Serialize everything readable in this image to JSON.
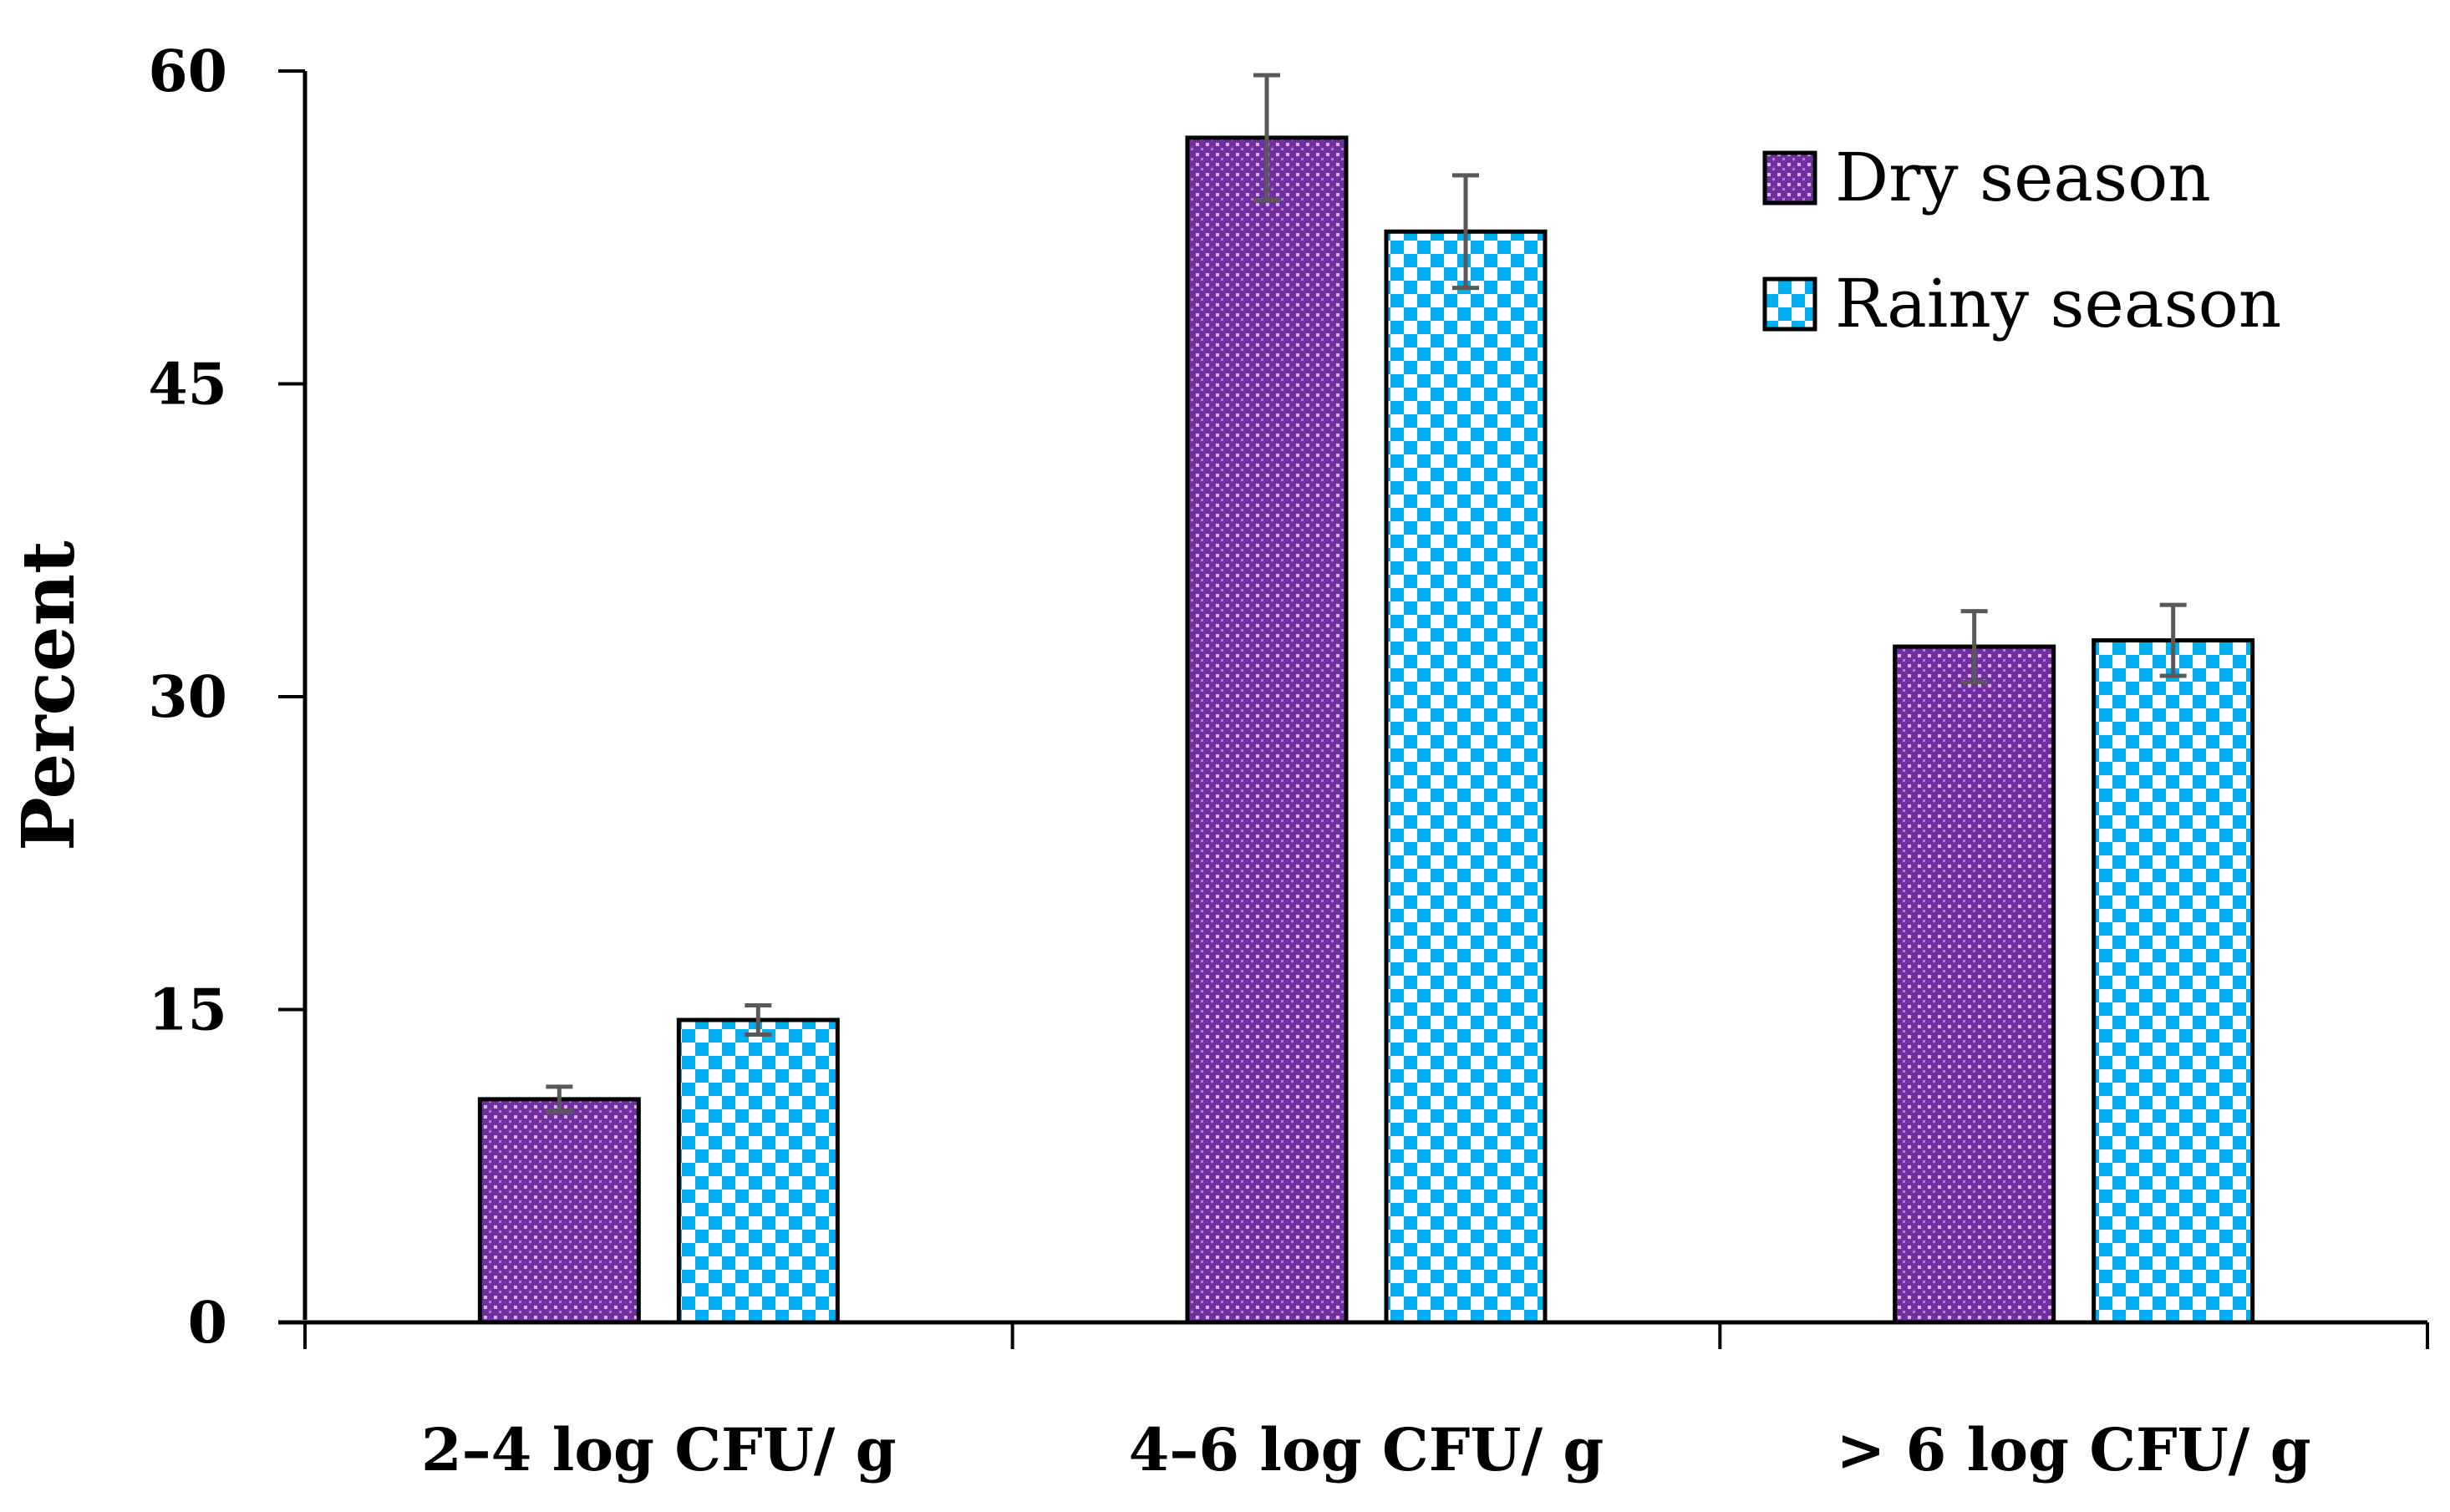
{
  "chart_data": {
    "type": "bar",
    "title": "",
    "xlabel": "",
    "ylabel": "Percent",
    "ylim": [
      0,
      60
    ],
    "yticks": [
      0,
      15,
      30,
      45,
      60
    ],
    "grid": false,
    "legend_position": "top-right",
    "categories": [
      "2–4 log CFU/ g",
      "4–6 log CFU/ g",
      "> 6 log CFU/ g"
    ],
    "series": [
      {
        "name": "Dry season",
        "values": [
          10.7,
          56.8,
          32.4
        ],
        "errors": [
          0.6,
          3.0,
          1.7
        ],
        "color": "#7030A0",
        "pattern": "dotted"
      },
      {
        "name": "Rainy season",
        "values": [
          14.5,
          52.3,
          32.7
        ],
        "errors": [
          0.7,
          2.7,
          1.7
        ],
        "color": "#00B0F0",
        "pattern": "checkerboard"
      }
    ]
  }
}
